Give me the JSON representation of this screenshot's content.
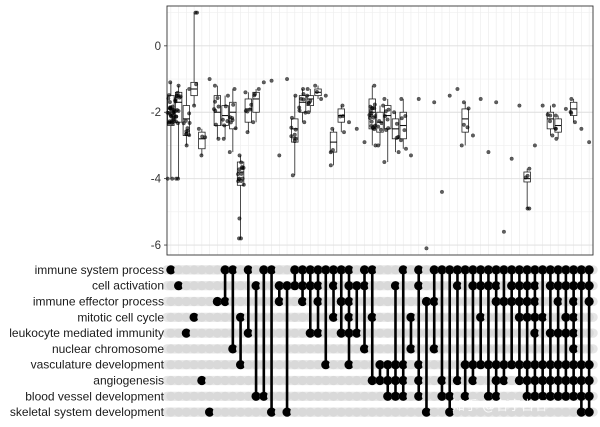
{
  "watermark": "知乎 @名字占名",
  "chart_data": {
    "type": "upset",
    "y_axis": {
      "ticks": [
        "0",
        "-2",
        "-4",
        "-6"
      ],
      "tick_values": [
        0,
        -2,
        -4,
        -6
      ],
      "ylim": [
        -6.3,
        1.2
      ],
      "grid": true
    },
    "sets": [
      "immune system process",
      "cell activation",
      "immune effector process",
      "mitotic cell cycle",
      "leukocyte mediated immunity",
      "nuclear chromosome",
      "vasculature development",
      "angiogenesis",
      "blood vessel development",
      "skeletal system development"
    ],
    "intersections": [
      {
        "sets": [
          0
        ],
        "median": -1.9,
        "q1": -2.4,
        "q3": -1.5,
        "min": -4.0,
        "max": -1.1,
        "outliers": [
          -4.0
        ],
        "n": 30
      },
      {
        "sets": [
          1
        ],
        "median": -1.7,
        "q1": -2.3,
        "q3": -1.4,
        "min": -4.0,
        "max": -1.2,
        "outliers": [
          -4.0
        ],
        "n": 18
      },
      {
        "sets": [
          4
        ],
        "median": -2.2,
        "q1": -2.7,
        "q3": -1.8,
        "min": -3.0,
        "max": -1.3,
        "outliers": [],
        "n": 12
      },
      {
        "sets": [
          3
        ],
        "median": -1.3,
        "q1": -1.5,
        "q3": -1.1,
        "min": -1.8,
        "max": 1.0,
        "outliers": [
          1.0
        ],
        "n": 3
      },
      {
        "sets": [
          7
        ],
        "median": -2.8,
        "q1": -3.1,
        "q3": -2.6,
        "min": -3.3,
        "max": -2.5,
        "outliers": [],
        "n": 4
      },
      {
        "sets": [
          9
        ],
        "median": -1.0,
        "q1": -1.0,
        "q3": -1.0,
        "min": -1.0,
        "max": -1.0,
        "outliers": [],
        "n": 1
      },
      {
        "sets": [
          2
        ],
        "median": -2.0,
        "q1": -2.4,
        "q3": -1.5,
        "min": -2.8,
        "max": -1.2,
        "outliers": [],
        "n": 8
      },
      {
        "sets": [
          0,
          2
        ],
        "median": -2.1,
        "q1": -2.4,
        "q3": -1.8,
        "min": -2.8,
        "max": -1.5,
        "outliers": [],
        "n": 6
      },
      {
        "sets": [
          0,
          5
        ],
        "median": -2.0,
        "q1": -2.5,
        "q3": -1.7,
        "min": -3.2,
        "max": -1.3,
        "outliers": [],
        "n": 8
      },
      {
        "sets": [
          3,
          6
        ],
        "median": -3.8,
        "q1": -4.2,
        "q3": -3.5,
        "min": -5.8,
        "max": -3.3,
        "outliers": [
          -5.2,
          -5.8
        ],
        "n": 15
      },
      {
        "sets": [
          0,
          4
        ],
        "median": -1.9,
        "q1": -2.3,
        "q3": -1.6,
        "min": -2.6,
        "max": -1.4,
        "outliers": [],
        "n": 6
      },
      {
        "sets": [
          1,
          8
        ],
        "median": -1.6,
        "q1": -2.0,
        "q3": -1.4,
        "min": -2.3,
        "max": -1.3,
        "outliers": [],
        "n": 4
      },
      {
        "sets": [
          0,
          8
        ],
        "median": -1.1,
        "q1": -1.1,
        "q3": -1.1,
        "min": -1.1,
        "max": -1.1,
        "outliers": [],
        "n": 1
      },
      {
        "sets": [
          0,
          9
        ],
        "median": -1.05,
        "q1": -1.05,
        "q3": -1.05,
        "min": -1.05,
        "max": -1.05,
        "outliers": [],
        "n": 1
      },
      {
        "sets": [
          1,
          2
        ],
        "median": -3.3,
        "q1": -3.3,
        "q3": -3.3,
        "min": -3.3,
        "max": -3.3,
        "outliers": [],
        "n": 1
      },
      {
        "sets": [
          1,
          9
        ],
        "median": -1.0,
        "q1": -1.0,
        "q3": -1.0,
        "min": -1.0,
        "max": -1.0,
        "outliers": [],
        "n": 1
      },
      {
        "sets": [
          0,
          1
        ],
        "median": -2.5,
        "q1": -2.9,
        "q3": -2.2,
        "min": -3.9,
        "max": -1.5,
        "outliers": [],
        "n": 10
      },
      {
        "sets": [
          0,
          1,
          2
        ],
        "median": -1.7,
        "q1": -2.0,
        "q3": -1.5,
        "min": -2.3,
        "max": -1.3,
        "outliers": [],
        "n": 8
      },
      {
        "sets": [
          0,
          1,
          4
        ],
        "median": -1.6,
        "q1": -1.8,
        "q3": -1.5,
        "min": -2.0,
        "max": -1.3,
        "outliers": [],
        "n": 6
      },
      {
        "sets": [
          0,
          1,
          2,
          4
        ],
        "median": -1.4,
        "q1": -1.5,
        "q3": -1.3,
        "min": -1.6,
        "max": -1.2,
        "outliers": [],
        "n": 3
      },
      {
        "sets": [
          0,
          6
        ],
        "median": -1.5,
        "q1": -1.5,
        "q3": -1.5,
        "min": -1.5,
        "max": -1.5,
        "outliers": [],
        "n": 1
      },
      {
        "sets": [
          0,
          1,
          3
        ],
        "median": -2.9,
        "q1": -3.2,
        "q3": -2.6,
        "min": -3.6,
        "max": -2.5,
        "outliers": [],
        "n": 4
      },
      {
        "sets": [
          0,
          2,
          4
        ],
        "median": -2.1,
        "q1": -2.3,
        "q3": -1.9,
        "min": -2.6,
        "max": -1.8,
        "outliers": [],
        "n": 4
      },
      {
        "sets": [
          0,
          1,
          2,
          3,
          4,
          6
        ],
        "median": -2.3,
        "q1": -2.3,
        "q3": -2.3,
        "min": -2.3,
        "max": -2.3,
        "outliers": [],
        "n": 1
      },
      {
        "sets": [
          1,
          4
        ],
        "median": -2.5,
        "q1": -2.5,
        "q3": -2.5,
        "min": -2.5,
        "max": -2.5,
        "outliers": [],
        "n": 1
      },
      {
        "sets": [
          0,
          1,
          5
        ],
        "median": -2.9,
        "q1": -2.9,
        "q3": -2.9,
        "min": -2.9,
        "max": -2.9,
        "outliers": [],
        "n": 1
      },
      {
        "sets": [
          0,
          3,
          7
        ],
        "median": -2.0,
        "q1": -2.5,
        "q3": -1.6,
        "min": -3.0,
        "max": -1.2,
        "outliers": [],
        "n": 20
      },
      {
        "sets": [
          6,
          7
        ],
        "median": -2.3,
        "q1": -2.6,
        "q3": -2.0,
        "min": -3.0,
        "max": -1.8,
        "outliers": [],
        "n": 6
      },
      {
        "sets": [
          6,
          7,
          8
        ],
        "median": -2.1,
        "q1": -2.5,
        "q3": -1.8,
        "min": -3.5,
        "max": -1.6,
        "outliers": [],
        "n": 8
      },
      {
        "sets": [
          1,
          6,
          7,
          8
        ],
        "median": -2.5,
        "q1": -2.8,
        "q3": -2.2,
        "min": -3.2,
        "max": -2.0,
        "outliers": [],
        "n": 5
      },
      {
        "sets": [
          0,
          6,
          7,
          8
        ],
        "median": -2.4,
        "q1": -2.8,
        "q3": -2.0,
        "min": -3.1,
        "max": -1.6,
        "outliers": [],
        "n": 6
      },
      {
        "sets": [
          3,
          5
        ],
        "median": -3.3,
        "q1": -3.3,
        "q3": -3.3,
        "min": -3.3,
        "max": -3.3,
        "outliers": [],
        "n": 1
      },
      {
        "sets": [
          0,
          1,
          6,
          7,
          8
        ],
        "median": -1.6,
        "q1": -1.6,
        "q3": -1.6,
        "min": -1.6,
        "max": -1.6,
        "outliers": [],
        "n": 1
      },
      {
        "sets": [
          2,
          9
        ],
        "median": -6.1,
        "q1": -6.1,
        "q3": -6.1,
        "min": -6.1,
        "max": -6.1,
        "outliers": [],
        "n": 1
      },
      {
        "sets": [
          0,
          2,
          5
        ],
        "median": -1.7,
        "q1": -1.7,
        "q3": -1.7,
        "min": -1.7,
        "max": -1.7,
        "outliers": [],
        "n": 1
      },
      {
        "sets": [
          0,
          7,
          8
        ],
        "median": -4.4,
        "q1": -4.4,
        "q3": -4.4,
        "min": -4.4,
        "max": -4.4,
        "outliers": [],
        "n": 1
      },
      {
        "sets": [
          0,
          8,
          9
        ],
        "median": -1.5,
        "q1": -1.5,
        "q3": -1.5,
        "min": -1.5,
        "max": -1.5,
        "outliers": [],
        "n": 1
      },
      {
        "sets": [
          0,
          1,
          7
        ],
        "median": -1.3,
        "q1": -1.3,
        "q3": -1.3,
        "min": -1.3,
        "max": -1.3,
        "outliers": [],
        "n": 1
      },
      {
        "sets": [
          0,
          6,
          8
        ],
        "median": -2.2,
        "q1": -2.6,
        "q3": -1.9,
        "min": -3.0,
        "max": -1.7,
        "outliers": [],
        "n": 5
      },
      {
        "sets": [
          0,
          1,
          6,
          7
        ],
        "median": -2.7,
        "q1": -2.7,
        "q3": -2.7,
        "min": -2.7,
        "max": -2.7,
        "outliers": [],
        "n": 1
      },
      {
        "sets": [
          0,
          1,
          3,
          6
        ],
        "median": -1.6,
        "q1": -1.6,
        "q3": -1.6,
        "min": -1.6,
        "max": -1.6,
        "outliers": [],
        "n": 1
      },
      {
        "sets": [
          0,
          1,
          6,
          8
        ],
        "median": -3.2,
        "q1": -3.2,
        "q3": -3.2,
        "min": -3.2,
        "max": -3.2,
        "outliers": [],
        "n": 1
      },
      {
        "sets": [
          0,
          1,
          2,
          6,
          7,
          8
        ],
        "median": -1.7,
        "q1": -1.7,
        "q3": -1.7,
        "min": -1.7,
        "max": -1.7,
        "outliers": [],
        "n": 1
      },
      {
        "sets": [
          0,
          2,
          6,
          7
        ],
        "median": -5.6,
        "q1": -5.6,
        "q3": -5.6,
        "min": -5.6,
        "max": -5.6,
        "outliers": [],
        "n": 1
      },
      {
        "sets": [
          0,
          1,
          2,
          6
        ],
        "median": -3.4,
        "q1": -3.4,
        "q3": -3.4,
        "min": -3.4,
        "max": -3.4,
        "outliers": [],
        "n": 1
      },
      {
        "sets": [
          0,
          1,
          2,
          3,
          6,
          7
        ],
        "median": -1.8,
        "q1": -1.8,
        "q3": -1.8,
        "min": -1.8,
        "max": -1.8,
        "outliers": [],
        "n": 1
      },
      {
        "sets": [
          0,
          1,
          2,
          3,
          6,
          7,
          8
        ],
        "median": -4.0,
        "q1": -4.1,
        "q3": -3.8,
        "min": -4.9,
        "max": -3.7,
        "outliers": [
          -4.9
        ],
        "n": 4
      },
      {
        "sets": [
          0,
          1,
          2,
          3,
          4,
          6,
          7,
          8
        ],
        "median": -3.0,
        "q1": -3.0,
        "q3": -3.0,
        "min": -3.0,
        "max": -3.0,
        "outliers": [],
        "n": 1
      },
      {
        "sets": [
          0,
          3,
          6,
          7,
          8
        ],
        "median": -1.8,
        "q1": -1.8,
        "q3": -1.8,
        "min": -1.8,
        "max": -1.8,
        "outliers": [],
        "n": 1
      },
      {
        "sets": [
          0,
          1,
          4,
          6,
          7,
          8
        ],
        "median": -2.2,
        "q1": -2.5,
        "q3": -2.0,
        "min": -2.7,
        "max": -1.8,
        "outliers": [],
        "n": 5
      },
      {
        "sets": [
          0,
          1,
          2,
          4,
          6,
          7,
          8
        ],
        "median": -2.4,
        "q1": -2.6,
        "q3": -2.2,
        "min": -2.8,
        "max": -2.1,
        "outliers": [],
        "n": 4
      },
      {
        "sets": [
          0,
          1,
          3,
          4,
          6,
          7,
          8
        ],
        "median": -1.9,
        "q1": -1.9,
        "q3": -1.9,
        "min": -1.9,
        "max": -1.9,
        "outliers": [],
        "n": 1
      },
      {
        "sets": [
          0,
          1,
          2,
          3,
          4,
          5,
          6,
          7,
          8
        ],
        "median": -1.9,
        "q1": -2.1,
        "q3": -1.7,
        "min": -2.3,
        "max": -1.6,
        "outliers": [],
        "n": 4
      },
      {
        "sets": [
          0,
          1,
          6,
          7,
          8,
          9
        ],
        "median": -2.5,
        "q1": -2.5,
        "q3": -2.5,
        "min": -2.5,
        "max": -2.5,
        "outliers": [],
        "n": 1
      },
      {
        "sets": [
          0,
          1,
          2,
          6,
          7,
          8,
          9
        ],
        "median": -2.9,
        "q1": -2.9,
        "q3": -2.9,
        "min": -2.9,
        "max": -2.9,
        "outliers": [],
        "n": 1
      }
    ]
  }
}
